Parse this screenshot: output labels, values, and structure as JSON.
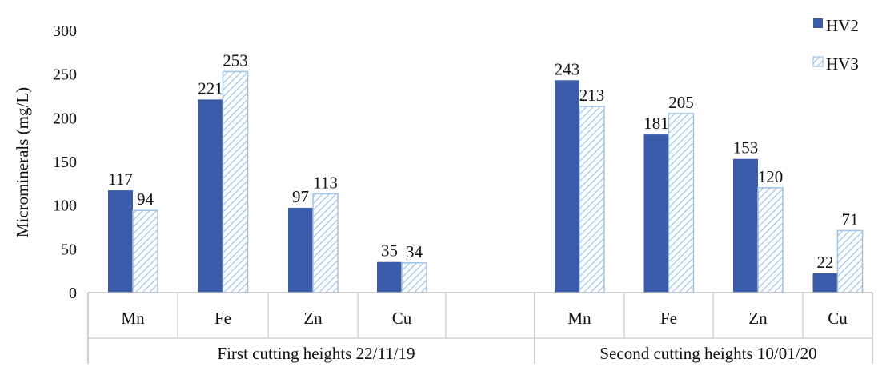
{
  "chart_data": {
    "type": "bar",
    "ylabel": "Microminerals (mg/L)",
    "ylim": [
      0,
      300
    ],
    "yticks": [
      0,
      50,
      100,
      150,
      200,
      250,
      300
    ],
    "grid": false,
    "legend_position": "top-right",
    "groups": [
      {
        "label": "First cutting heights 22/11/19",
        "categories": [
          "Mn",
          "Fe",
          "Zn",
          "Cu"
        ]
      },
      {
        "label": "Second cutting heights 10/01/20",
        "categories": [
          "Mn",
          "Fe",
          "Zn",
          "Cu"
        ]
      }
    ],
    "series": [
      {
        "name": "HV2",
        "values": [
          117,
          221,
          97,
          35,
          243,
          181,
          153,
          22
        ],
        "color": "#3a5ca8",
        "pattern": "solid"
      },
      {
        "name": "HV3",
        "values": [
          94,
          253,
          113,
          34,
          213,
          205,
          120,
          71
        ],
        "color": "#9fc3e6",
        "pattern": "diagonal-hatch"
      }
    ]
  }
}
